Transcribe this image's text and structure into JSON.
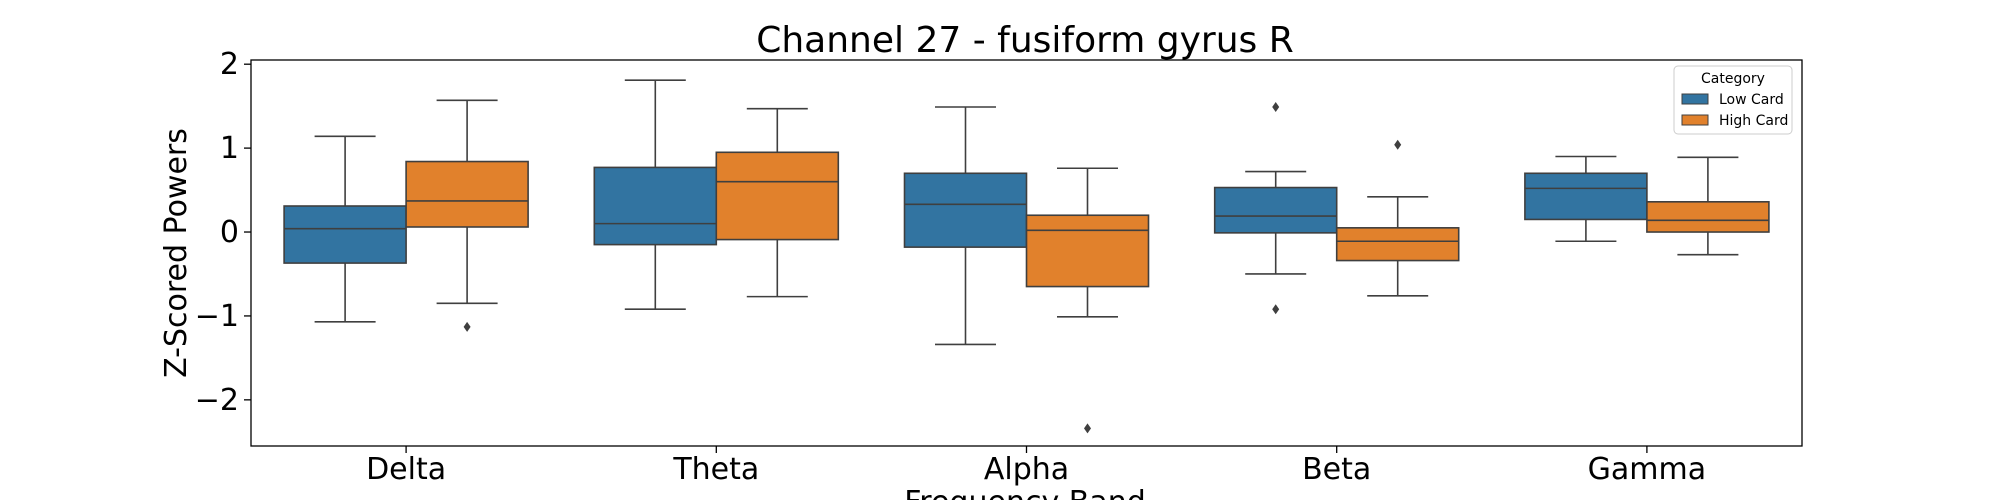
{
  "chart_data": {
    "type": "box",
    "title": "Channel 27 - fusiform gyrus R",
    "xlabel": "Frequency Band",
    "ylabel": "Z-Scored Powers",
    "categories": [
      "Delta",
      "Theta",
      "Alpha",
      "Beta",
      "Gamma"
    ],
    "ylim": [
      -2.55,
      2.05
    ],
    "yticks": [
      2,
      1,
      0,
      -1,
      -2
    ],
    "ytick_labels": [
      "2",
      "1",
      "0",
      "−1",
      "−2"
    ],
    "legend": {
      "title": "Category",
      "position": "top-right"
    },
    "series": [
      {
        "name": "Low Card",
        "color": "#3274a1",
        "boxes": [
          {
            "whisker_low": -1.07,
            "q1": -0.37,
            "median": 0.04,
            "q3": 0.31,
            "whisker_high": 1.14,
            "outliers": []
          },
          {
            "whisker_low": -0.92,
            "q1": -0.15,
            "median": 0.1,
            "q3": 0.77,
            "whisker_high": 1.81,
            "outliers": []
          },
          {
            "whisker_low": -1.34,
            "q1": -0.18,
            "median": 0.33,
            "q3": 0.7,
            "whisker_high": 1.49,
            "outliers": []
          },
          {
            "whisker_low": -0.5,
            "q1": -0.01,
            "median": 0.19,
            "q3": 0.53,
            "whisker_high": 0.72,
            "outliers": [
              1.49,
              -0.92
            ]
          },
          {
            "whisker_low": -0.11,
            "q1": 0.15,
            "median": 0.52,
            "q3": 0.7,
            "whisker_high": 0.9,
            "outliers": []
          }
        ]
      },
      {
        "name": "High Card",
        "color": "#e1812c",
        "boxes": [
          {
            "whisker_low": -0.85,
            "q1": 0.06,
            "median": 0.37,
            "q3": 0.84,
            "whisker_high": 1.57,
            "outliers": [
              -1.13
            ]
          },
          {
            "whisker_low": -0.77,
            "q1": -0.09,
            "median": 0.6,
            "q3": 0.95,
            "whisker_high": 1.47,
            "outliers": []
          },
          {
            "whisker_low": -1.01,
            "q1": -0.65,
            "median": 0.02,
            "q3": 0.2,
            "whisker_high": 0.76,
            "outliers": [
              -2.34
            ]
          },
          {
            "whisker_low": -0.76,
            "q1": -0.34,
            "median": -0.11,
            "q3": 0.05,
            "whisker_high": 0.42,
            "outliers": [
              1.04
            ]
          },
          {
            "whisker_low": -0.27,
            "q1": 0.0,
            "median": 0.14,
            "q3": 0.36,
            "whisker_high": 0.89,
            "outliers": []
          }
        ]
      }
    ]
  }
}
